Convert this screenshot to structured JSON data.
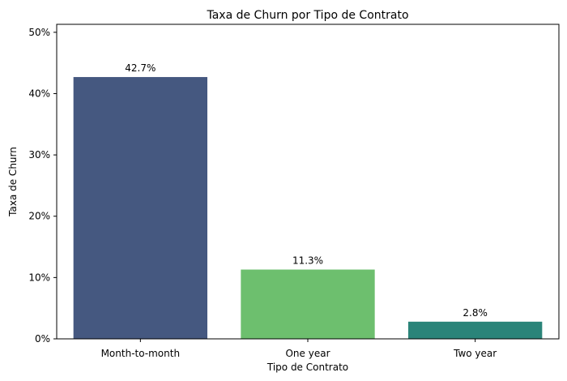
{
  "chart_data": {
    "type": "bar",
    "title": "Taxa de Churn por Tipo de Contrato",
    "xlabel": "Tipo de Contrato",
    "ylabel": "Taxa de Churn",
    "categories": [
      "Month-to-month",
      "One year",
      "Two year"
    ],
    "values": [
      0.427,
      0.113,
      0.028
    ],
    "data_labels": [
      "42.7%",
      "11.3%",
      "2.8%"
    ],
    "bar_colors": [
      "#455880",
      "#6dbf6e",
      "#2a8479"
    ],
    "ylim": [
      0,
      0.513
    ],
    "yticks": [
      0,
      0.1,
      0.2,
      0.3,
      0.4,
      0.5
    ],
    "ytick_labels": [
      "0%",
      "10%",
      "20%",
      "30%",
      "40%",
      "50%"
    ],
    "grid": false,
    "legend": "none"
  }
}
